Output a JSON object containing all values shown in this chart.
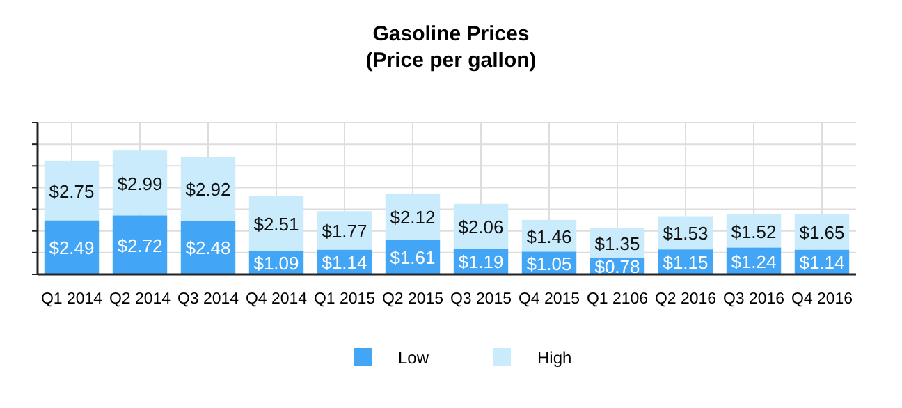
{
  "chart_data": {
    "type": "bar",
    "title": "Gasoline Prices",
    "subtitle": "(Price per gallon)",
    "stacked": true,
    "grid": true,
    "legend": "bottom",
    "tick_labels": "x",
    "ylim": [
      0,
      7
    ],
    "yticks": [
      {
        "value": 0,
        "label": null
      },
      {
        "value": 1,
        "label": null
      },
      {
        "value": 2,
        "label": null
      },
      {
        "value": 3,
        "label": null
      },
      {
        "value": 4,
        "label": null
      },
      {
        "value": 5,
        "label": null
      },
      {
        "value": 6,
        "label": null
      },
      {
        "value": 7,
        "label": null
      }
    ],
    "categories": [
      "Q1 2014",
      "Q2 2014",
      "Q3 2014",
      "Q4 2014",
      "Q1 2015",
      "Q2 2015",
      "Q3 2015",
      "Q4 2015",
      "Q1 2106",
      "Q2 2016",
      "Q3 2016",
      "Q4 2016"
    ],
    "series": [
      {
        "name": "Low",
        "color": "#42a5f5",
        "values": [
          2.49,
          2.72,
          2.48,
          1.09,
          1.14,
          1.61,
          1.19,
          1.05,
          0.78,
          1.15,
          1.24,
          1.14
        ],
        "value_labels": [
          "$2.49",
          "$2.72",
          "$2.48",
          "$1.09",
          "$1.14",
          "$1.61",
          "$1.19",
          "$1.05",
          "$0.78",
          "$1.15",
          "$1.24",
          "$1.14"
        ]
      },
      {
        "name": "High",
        "color": "#c9ebfb",
        "values": [
          2.75,
          2.99,
          2.92,
          2.51,
          1.77,
          2.12,
          2.06,
          1.46,
          1.35,
          1.53,
          1.52,
          1.65
        ],
        "value_labels": [
          "$2.75",
          "$2.99",
          "$2.92",
          "$2.51",
          "$1.77",
          "$2.12",
          "$2.06",
          "$1.46",
          "$1.35",
          "$1.53",
          "$1.52",
          "$1.65"
        ]
      }
    ]
  }
}
